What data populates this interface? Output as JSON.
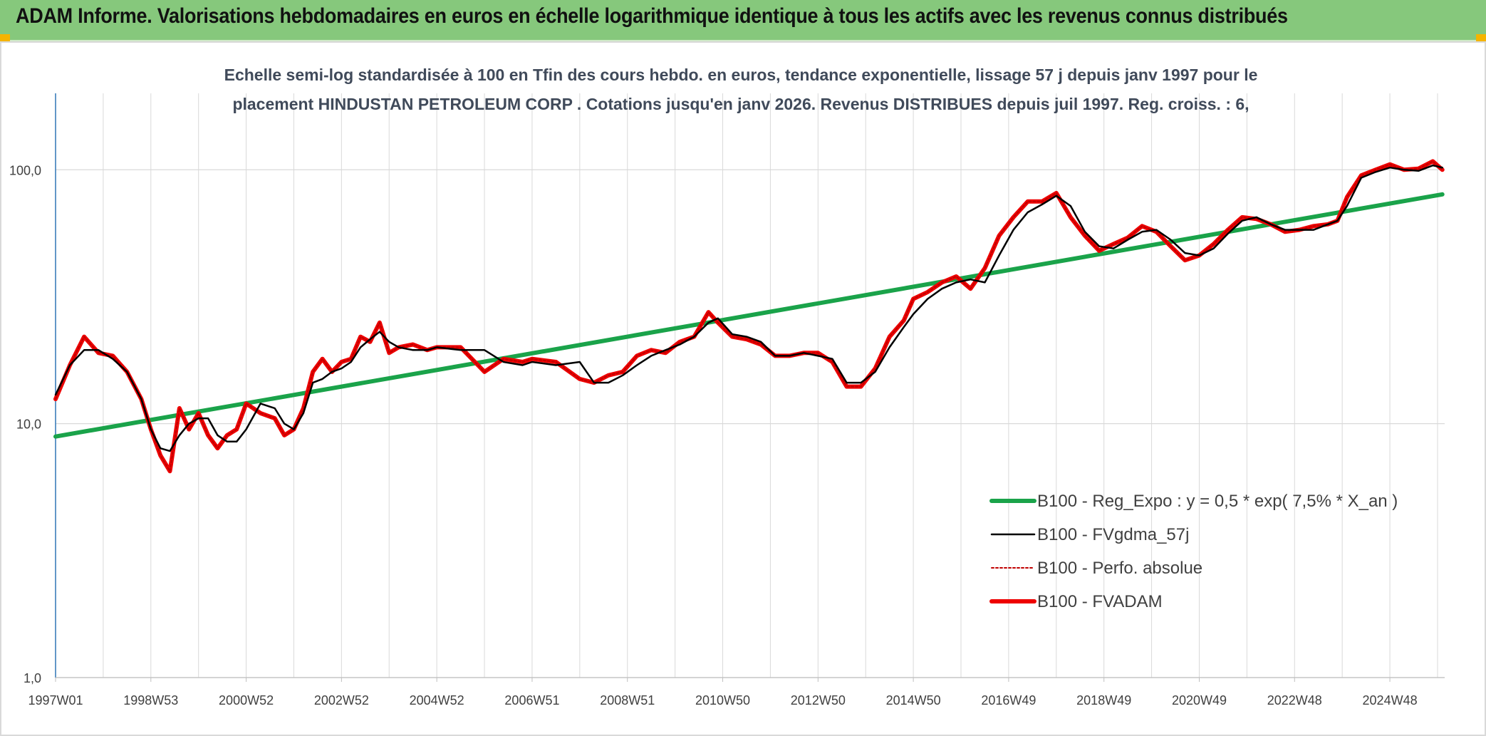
{
  "header": {
    "title": "ADAM Informe. Valorisations hebdomadaires en euros en échelle logarithmique identique à tous les actifs avec les revenus connus distribués"
  },
  "colors": {
    "header_bg": "#86c87c",
    "regression": "#1aa34a",
    "fvgdma": "#000000",
    "perfo": "#c00000",
    "fvadam": "#ee0000",
    "axis": "#2e75b6",
    "grid": "#d9d9d9"
  },
  "chart_data": {
    "type": "line",
    "subtitle_lines": [
      "Echelle semi-log standardisée à 100 en Tfin des cours hebdo. en euros, tendance exponentielle, lissage 57 j depuis janv 1997 pour le",
      "placement HINDUSTAN PETROLEUM CORP . Cotations jusqu'en janv 2026. Revenus DISTRIBUES depuis juil 1997. Reg. croiss. : 6,"
    ],
    "y_scale": "log",
    "ylim": [
      1,
      200
    ],
    "y_ticks": [
      {
        "value": 100,
        "label": "100,0"
      },
      {
        "value": 10,
        "label": "10,0"
      },
      {
        "value": 1,
        "label": "1,0"
      }
    ],
    "xlim": [
      1997.0,
      2026.15
    ],
    "x_ticks": [
      {
        "label": "1997W01",
        "x": 1997.0
      },
      {
        "label": "1998W53",
        "x": 1999.0
      },
      {
        "label": "2000W52",
        "x": 2001.0
      },
      {
        "label": "2002W52",
        "x": 2003.0
      },
      {
        "label": "2004W52",
        "x": 2005.0
      },
      {
        "label": "2006W51",
        "x": 2007.0
      },
      {
        "label": "2008W51",
        "x": 2009.0
      },
      {
        "label": "2010W50",
        "x": 2011.0
      },
      {
        "label": "2012W50",
        "x": 2013.0
      },
      {
        "label": "2014W50",
        "x": 2015.0
      },
      {
        "label": "2016W49",
        "x": 2017.0
      },
      {
        "label": "2018W49",
        "x": 2019.0
      },
      {
        "label": "2020W49",
        "x": 2021.0
      },
      {
        "label": "2022W48",
        "x": 2023.0
      },
      {
        "label": "2024W48",
        "x": 2025.0
      }
    ],
    "grid": true,
    "legend_position": "bottom-right",
    "series": [
      {
        "name": "B100 - Reg_Expo : y = 0,5 * exp( 7,5% *  X_an )",
        "style": "solid-thick",
        "color": "#1aa34a",
        "x": [
          1997.0,
          2026.1
        ],
        "y": [
          8.9,
          80.0
        ]
      },
      {
        "name": "B100 - FVgdma_57j",
        "style": "solid",
        "color": "#000000",
        "x": [
          1997.0,
          1997.3,
          1997.6,
          1997.9,
          1998.2,
          1998.5,
          1998.8,
          1999.0,
          1999.2,
          1999.4,
          1999.6,
          1999.8,
          2000.0,
          2000.2,
          2000.4,
          2000.6,
          2000.8,
          2001.0,
          2001.3,
          2001.6,
          2001.8,
          2002.0,
          2002.2,
          2002.4,
          2002.6,
          2002.8,
          2003.0,
          2003.2,
          2003.4,
          2003.6,
          2003.8,
          2004.0,
          2004.2,
          2004.5,
          2004.8,
          2005.0,
          2005.5,
          2006.0,
          2006.4,
          2006.8,
          2007.0,
          2007.5,
          2008.0,
          2008.3,
          2008.6,
          2008.9,
          2009.2,
          2009.5,
          2009.8,
          2010.1,
          2010.4,
          2010.7,
          2010.9,
          2011.2,
          2011.5,
          2011.8,
          2012.1,
          2012.4,
          2012.7,
          2013.0,
          2013.3,
          2013.6,
          2013.9,
          2014.2,
          2014.5,
          2014.8,
          2015.0,
          2015.3,
          2015.6,
          2015.9,
          2016.2,
          2016.5,
          2016.8,
          2017.1,
          2017.4,
          2017.7,
          2018.0,
          2018.3,
          2018.6,
          2018.9,
          2019.2,
          2019.5,
          2019.8,
          2020.1,
          2020.4,
          2020.7,
          2021.0,
          2021.3,
          2021.6,
          2021.9,
          2022.2,
          2022.5,
          2022.8,
          2023.1,
          2023.4,
          2023.7,
          2023.9,
          2024.1,
          2024.4,
          2024.7,
          2025.0,
          2025.3,
          2025.6,
          2025.9,
          2026.1
        ],
        "y": [
          13,
          17,
          19.5,
          19.5,
          18,
          16,
          12.5,
          9.5,
          8,
          7.8,
          9,
          10,
          10.5,
          10.5,
          9,
          8.5,
          8.5,
          9.5,
          12,
          11.5,
          10,
          9.5,
          11,
          14.5,
          15,
          16,
          16.5,
          17.5,
          20,
          21.5,
          23,
          21,
          20,
          19.5,
          19.5,
          20,
          19.5,
          19.5,
          17.5,
          17,
          17.5,
          17,
          17.5,
          14.5,
          14.5,
          15.5,
          17,
          18.5,
          19.5,
          20.5,
          22,
          25,
          26,
          22.5,
          22,
          21,
          18.5,
          18.5,
          19,
          18.5,
          18,
          14.5,
          14.5,
          16,
          20,
          24,
          27,
          31,
          34,
          36,
          37,
          36,
          46,
          58,
          68,
          73,
          79,
          72,
          57,
          50,
          49,
          53,
          57,
          58,
          53,
          47,
          46,
          49,
          56,
          63,
          65,
          61,
          58,
          58,
          58,
          61,
          63,
          72,
          93,
          98,
          102,
          100,
          99,
          104,
          102
        ]
      },
      {
        "name": "B100 - Perfo. absolue",
        "style": "dotted",
        "color": "#c00000",
        "x": [
          1997.0,
          1997.3,
          1997.6,
          1997.9,
          1998.2,
          1998.5,
          1998.8,
          1999.0,
          1999.2,
          1999.4,
          1999.6,
          1999.8,
          2000.0,
          2000.2,
          2000.4,
          2000.6,
          2000.8,
          2001.0,
          2001.3,
          2001.6,
          2001.8,
          2002.0,
          2002.2,
          2002.4,
          2002.6,
          2002.8,
          2003.0,
          2003.2,
          2003.4,
          2003.6,
          2003.8,
          2004.0,
          2004.2,
          2004.5,
          2004.8,
          2005.0,
          2005.5,
          2006.0,
          2006.4,
          2006.8,
          2007.0,
          2007.5,
          2008.0,
          2008.3,
          2008.6,
          2008.9,
          2009.2,
          2009.5,
          2009.8,
          2010.1,
          2010.4,
          2010.7,
          2010.9,
          2011.2,
          2011.5,
          2011.8,
          2012.1,
          2012.4,
          2012.7,
          2013.0,
          2013.3,
          2013.6,
          2013.9,
          2014.2,
          2014.5,
          2014.8,
          2015.0,
          2015.3,
          2015.6,
          2015.9,
          2016.2,
          2016.5,
          2016.8,
          2017.1,
          2017.4,
          2017.7,
          2018.0,
          2018.3,
          2018.6,
          2018.9,
          2019.2,
          2019.5,
          2019.8,
          2020.1,
          2020.4,
          2020.7,
          2021.0,
          2021.3,
          2021.6,
          2021.9,
          2022.2,
          2022.5,
          2022.8,
          2023.1,
          2023.4,
          2023.7,
          2023.9,
          2024.1,
          2024.4,
          2024.7,
          2025.0,
          2025.3,
          2025.6,
          2025.9,
          2026.1
        ],
        "y": [
          12.5,
          17,
          22,
          19,
          18.5,
          16,
          12.5,
          9.5,
          7.5,
          6.5,
          11.5,
          9.5,
          11,
          9,
          8,
          9,
          9.5,
          12,
          11,
          10.5,
          9,
          9.5,
          11.5,
          16,
          18,
          16,
          17.5,
          18,
          22,
          21,
          25,
          19,
          20,
          20.5,
          19.5,
          20,
          20,
          16,
          18,
          17.5,
          18,
          17.5,
          15,
          14.5,
          15.5,
          16,
          18.5,
          19.5,
          19,
          21,
          22,
          27.5,
          25,
          22,
          21.5,
          20.5,
          18.5,
          18.5,
          19,
          19,
          17.5,
          14,
          14,
          16.5,
          22,
          25.5,
          31,
          33,
          36,
          38,
          34,
          41,
          55,
          65,
          75,
          75,
          81,
          65,
          55,
          48,
          51,
          54,
          60,
          57,
          50,
          44,
          46,
          51,
          58,
          65,
          64,
          61,
          57,
          58,
          60,
          61,
          63,
          78,
          95,
          100,
          105,
          100,
          101,
          108,
          100
        ]
      },
      {
        "name": "B100 - FVADAM",
        "style": "solid-thick",
        "color": "#ee0000",
        "x": [
          1997.0,
          1997.3,
          1997.6,
          1997.9,
          1998.2,
          1998.5,
          1998.8,
          1999.0,
          1999.2,
          1999.4,
          1999.6,
          1999.8,
          2000.0,
          2000.2,
          2000.4,
          2000.6,
          2000.8,
          2001.0,
          2001.3,
          2001.6,
          2001.8,
          2002.0,
          2002.2,
          2002.4,
          2002.6,
          2002.8,
          2003.0,
          2003.2,
          2003.4,
          2003.6,
          2003.8,
          2004.0,
          2004.2,
          2004.5,
          2004.8,
          2005.0,
          2005.5,
          2006.0,
          2006.4,
          2006.8,
          2007.0,
          2007.5,
          2008.0,
          2008.3,
          2008.6,
          2008.9,
          2009.2,
          2009.5,
          2009.8,
          2010.1,
          2010.4,
          2010.7,
          2010.9,
          2011.2,
          2011.5,
          2011.8,
          2012.1,
          2012.4,
          2012.7,
          2013.0,
          2013.3,
          2013.6,
          2013.9,
          2014.2,
          2014.5,
          2014.8,
          2015.0,
          2015.3,
          2015.6,
          2015.9,
          2016.2,
          2016.5,
          2016.8,
          2017.1,
          2017.4,
          2017.7,
          2018.0,
          2018.3,
          2018.6,
          2018.9,
          2019.2,
          2019.5,
          2019.8,
          2020.1,
          2020.4,
          2020.7,
          2021.0,
          2021.3,
          2021.6,
          2021.9,
          2022.2,
          2022.5,
          2022.8,
          2023.1,
          2023.4,
          2023.7,
          2023.9,
          2024.1,
          2024.4,
          2024.7,
          2025.0,
          2025.3,
          2025.6,
          2025.9,
          2026.1
        ],
        "y": [
          12.5,
          17,
          22,
          19,
          18.5,
          16,
          12.5,
          9.5,
          7.5,
          6.5,
          11.5,
          9.5,
          11,
          9,
          8,
          9,
          9.5,
          12,
          11,
          10.5,
          9,
          9.5,
          11.5,
          16,
          18,
          16,
          17.5,
          18,
          22,
          21,
          25,
          19,
          20,
          20.5,
          19.5,
          20,
          20,
          16,
          18,
          17.5,
          18,
          17.5,
          15,
          14.5,
          15.5,
          16,
          18.5,
          19.5,
          19,
          21,
          22,
          27.5,
          25,
          22,
          21.5,
          20.5,
          18.5,
          18.5,
          19,
          19,
          17.5,
          14,
          14,
          16.5,
          22,
          25.5,
          31,
          33,
          36,
          38,
          34,
          41,
          55,
          65,
          75,
          75,
          81,
          65,
          55,
          48,
          51,
          54,
          60,
          57,
          50,
          44,
          46,
          51,
          58,
          65,
          64,
          61,
          57,
          58,
          60,
          61,
          63,
          78,
          95,
          100,
          105,
          100,
          101,
          108,
          100
        ]
      }
    ]
  }
}
